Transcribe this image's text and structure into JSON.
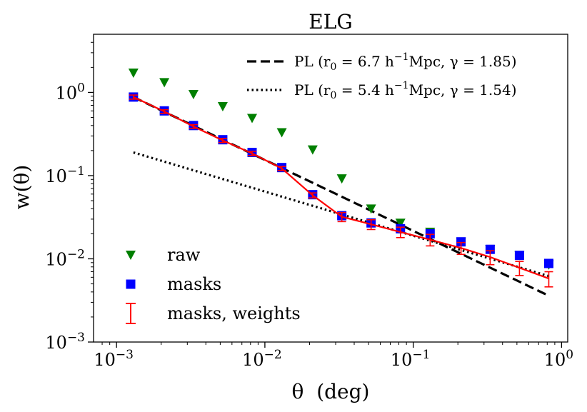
{
  "chart_data": {
    "type": "scatter",
    "title": "ELG",
    "xlabel": "θ  (deg)",
    "ylabel": "w(θ)",
    "xscale": "log",
    "yscale": "log",
    "xlim": [
      0.0007,
      1.1
    ],
    "ylim": [
      0.001,
      5.0
    ],
    "xticks": [
      {
        "value": 0.001,
        "base": "10",
        "exp": "−3"
      },
      {
        "value": 0.01,
        "base": "10",
        "exp": "−2"
      },
      {
        "value": 0.1,
        "base": "10",
        "exp": "−1"
      },
      {
        "value": 1,
        "base": "10",
        "exp": "0"
      }
    ],
    "yticks": [
      {
        "value": 0.001,
        "base": "10",
        "exp": "−3"
      },
      {
        "value": 0.01,
        "base": "10",
        "exp": "−2"
      },
      {
        "value": 0.1,
        "base": "10",
        "exp": "−1"
      },
      {
        "value": 1,
        "base": "10",
        "exp": "0"
      }
    ],
    "x": [
      0.0013,
      0.0021,
      0.0033,
      0.0052,
      0.0082,
      0.013,
      0.021,
      0.033,
      0.052,
      0.082,
      0.13,
      0.21,
      0.33,
      0.52,
      0.82
    ],
    "series": [
      {
        "name": "raw",
        "style": "marker-triangle-down",
        "color": "#007f00",
        "values": [
          1.72,
          1.32,
          0.95,
          0.68,
          0.49,
          0.33,
          0.205,
          0.092,
          0.04,
          0.027,
          0.021,
          0.016,
          0.013,
          0.011,
          0.0085
        ]
      },
      {
        "name": "masks",
        "style": "marker-square",
        "color": "#0000ff",
        "values": [
          0.88,
          0.6,
          0.4,
          0.27,
          0.19,
          0.125,
          0.059,
          0.033,
          0.027,
          0.023,
          0.02,
          0.016,
          0.013,
          0.011,
          0.0088
        ]
      },
      {
        "name": "masks, weights",
        "style": "line-errorbar",
        "color": "#ff0000",
        "values": [
          0.88,
          0.59,
          0.39,
          0.265,
          0.185,
          0.122,
          0.058,
          0.032,
          0.026,
          0.021,
          0.017,
          0.0135,
          0.0105,
          0.0078,
          0.0058
        ],
        "errors": [
          0.05,
          0.03,
          0.02,
          0.015,
          0.011,
          0.007,
          0.004,
          0.004,
          0.0035,
          0.003,
          0.0027,
          0.0022,
          0.002,
          0.0015,
          0.0012
        ]
      }
    ],
    "power_laws": [
      {
        "label_prefix": "PL (r",
        "label_sub": "0",
        "label_mid": " = 6.7 h",
        "label_sup": "−1",
        "label_suffix": "Mpc, γ = 1.85)",
        "style": "dashed",
        "color": "#000000",
        "x_range": [
          0.0013,
          0.82
        ],
        "y_range": [
          0.88,
          0.0036
        ]
      },
      {
        "label_prefix": "PL (r",
        "label_sub": "0",
        "label_mid": " = 5.4 h",
        "label_sup": "−1",
        "label_suffix": "Mpc, γ = 1.54)",
        "style": "dotted",
        "color": "#000000",
        "x_range": [
          0.0013,
          0.82
        ],
        "y_range": [
          0.19,
          0.0062
        ]
      }
    ],
    "legend_upper_position": "top-right",
    "legend_lower_position": "bottom-left"
  }
}
